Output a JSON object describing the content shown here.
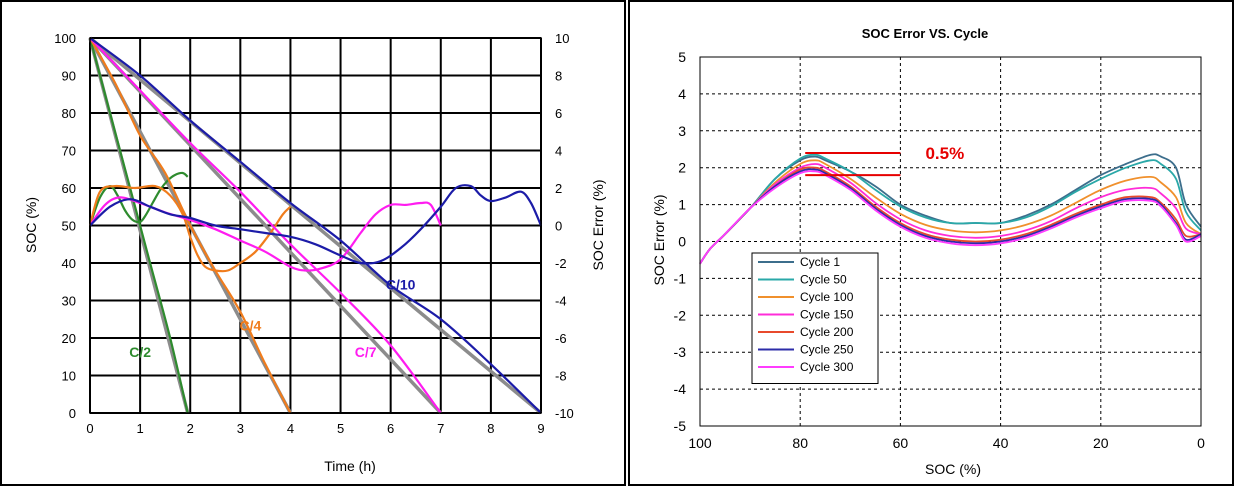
{
  "chart_data": [
    {
      "type": "line",
      "title": "",
      "xlabel": "Time (h)",
      "ylabel": "SOC (%)",
      "y2label": "SOC Error (%)",
      "xlim": [
        0,
        9
      ],
      "ylim": [
        0,
        100
      ],
      "y2lim": [
        -10,
        10
      ],
      "x_ticks": [
        "0",
        "1",
        "2",
        "3",
        "4",
        "5",
        "6",
        "7",
        "8",
        "9"
      ],
      "y_ticks": [
        "0",
        "10",
        "20",
        "30",
        "40",
        "50",
        "60",
        "70",
        "80",
        "90",
        "100"
      ],
      "y2_ticks": [
        "-10",
        "-8",
        "-6",
        "-4",
        "-2",
        "0",
        "2",
        "4",
        "6",
        "8",
        "10"
      ],
      "grid": true,
      "legend": "none",
      "series": [
        {
          "name": "C/2",
          "color": "#2e8b2e",
          "axis": "y",
          "points": [
            [
              0,
              100
            ],
            [
              0.4,
              80
            ],
            [
              0.8,
              60
            ],
            [
              1.2,
              40
            ],
            [
              1.6,
              20
            ],
            [
              1.95,
              0
            ]
          ]
        },
        {
          "name": "",
          "color": "#2e8b2e",
          "axis": "y2",
          "points": [
            [
              0,
              0
            ],
            [
              0.2,
              1.5
            ],
            [
              0.4,
              2.1
            ],
            [
              0.55,
              1.6
            ],
            [
              0.7,
              0.8
            ],
            [
              0.85,
              0.3
            ],
            [
              1.0,
              0.2
            ],
            [
              1.1,
              0.5
            ],
            [
              1.25,
              1.2
            ],
            [
              1.4,
              1.9
            ],
            [
              1.55,
              2.4
            ],
            [
              1.7,
              2.7
            ],
            [
              1.85,
              2.8
            ],
            [
              1.95,
              2.6
            ]
          ]
        },
        {
          "name": "C/4",
          "color": "#f07c1c",
          "axis": "y",
          "points": [
            [
              0,
              100
            ],
            [
              0.5,
              88
            ],
            [
              1.0,
              74
            ],
            [
              1.5,
              64
            ],
            [
              2.0,
              50
            ],
            [
              2.5,
              38
            ],
            [
              3.0,
              27
            ],
            [
              3.5,
              13
            ],
            [
              4.0,
              0
            ]
          ]
        },
        {
          "name": "",
          "color": "#f07c1c",
          "axis": "y2",
          "points": [
            [
              0,
              0
            ],
            [
              0.2,
              1.8
            ],
            [
              0.5,
              2.1
            ],
            [
              0.9,
              2.0
            ],
            [
              1.3,
              2.1
            ],
            [
              1.6,
              1.6
            ],
            [
              1.85,
              0.6
            ],
            [
              2.0,
              -0.6
            ],
            [
              2.15,
              -1.6
            ],
            [
              2.3,
              -2.2
            ],
            [
              2.5,
              -2.4
            ],
            [
              2.75,
              -2.4
            ],
            [
              3.0,
              -2.0
            ],
            [
              3.3,
              -1.4
            ],
            [
              3.6,
              -0.4
            ],
            [
              3.85,
              0.6
            ],
            [
              4.0,
              1.0
            ]
          ]
        },
        {
          "name": "C/7",
          "color": "#ff1cf0",
          "axis": "y",
          "points": [
            [
              0,
              100
            ],
            [
              1,
              86
            ],
            [
              2,
              72
            ],
            [
              3,
              59
            ],
            [
              4,
              45
            ],
            [
              5,
              32
            ],
            [
              6,
              18
            ],
            [
              7,
              0
            ]
          ]
        },
        {
          "name": "",
          "color": "#ff1cf0",
          "axis": "y2",
          "points": [
            [
              0,
              0
            ],
            [
              0.3,
              1.1
            ],
            [
              0.6,
              1.5
            ],
            [
              1.0,
              1.2
            ],
            [
              1.5,
              0.7
            ],
            [
              2.0,
              0.3
            ],
            [
              2.5,
              -0.2
            ],
            [
              3.0,
              -0.8
            ],
            [
              3.5,
              -1.4
            ],
            [
              4.0,
              -2.2
            ],
            [
              4.3,
              -2.4
            ],
            [
              4.6,
              -2.3
            ],
            [
              5.0,
              -1.8
            ],
            [
              5.4,
              -0.4
            ],
            [
              5.7,
              0.6
            ],
            [
              6.0,
              1.1
            ],
            [
              6.3,
              1.1
            ],
            [
              6.6,
              1.2
            ],
            [
              6.8,
              1.1
            ],
            [
              7.0,
              0
            ]
          ]
        },
        {
          "name": "C/10",
          "color": "#1c1ca8",
          "axis": "y",
          "points": [
            [
              0,
              100
            ],
            [
              1,
              90
            ],
            [
              2,
              78
            ],
            [
              3,
              67
            ],
            [
              4,
              56
            ],
            [
              5,
              46
            ],
            [
              6,
              34
            ],
            [
              7,
              25
            ],
            [
              8,
              13
            ],
            [
              9,
              0
            ]
          ]
        },
        {
          "name": "",
          "color": "#1c1ca8",
          "axis": "y2",
          "points": [
            [
              0,
              0
            ],
            [
              0.4,
              1.0
            ],
            [
              0.8,
              1.4
            ],
            [
              1.2,
              1.0
            ],
            [
              1.6,
              0.6
            ],
            [
              2.0,
              0.4
            ],
            [
              2.5,
              0
            ],
            [
              3.0,
              -0.2
            ],
            [
              3.5,
              -0.4
            ],
            [
              4.0,
              -0.6
            ],
            [
              4.5,
              -1.0
            ],
            [
              5.0,
              -1.6
            ],
            [
              5.4,
              -2.0
            ],
            [
              5.8,
              -1.9
            ],
            [
              6.2,
              -1.2
            ],
            [
              6.6,
              -0.2
            ],
            [
              7.0,
              1.0
            ],
            [
              7.3,
              2.0
            ],
            [
              7.6,
              2.1
            ],
            [
              7.8,
              1.6
            ],
            [
              8.0,
              1.3
            ],
            [
              8.3,
              1.5
            ],
            [
              8.6,
              1.8
            ],
            [
              8.8,
              1.2
            ],
            [
              9.0,
              0
            ]
          ]
        },
        {
          "name": "",
          "color": "#8c8c8c",
          "axis": "y",
          "points": [
            [
              0,
              100
            ],
            [
              1.95,
              0
            ]
          ]
        },
        {
          "name": "",
          "color": "#8c8c8c",
          "axis": "y",
          "points": [
            [
              0,
              100
            ],
            [
              4,
              0
            ]
          ]
        },
        {
          "name": "",
          "color": "#8c8c8c",
          "axis": "y",
          "points": [
            [
              0,
              100
            ],
            [
              7,
              0
            ]
          ]
        },
        {
          "name": "",
          "color": "#8c8c8c",
          "axis": "y",
          "points": [
            [
              0,
              100
            ],
            [
              9,
              0
            ]
          ]
        }
      ],
      "annotations": [
        {
          "text": "C/2",
          "x": 1.0,
          "y": 15,
          "color": "#2e8b2e"
        },
        {
          "text": "C/4",
          "x": 3.2,
          "y": 22,
          "color": "#f07c1c"
        },
        {
          "text": "C/7",
          "x": 5.5,
          "y": 15,
          "color": "#ff1cf0"
        },
        {
          "text": "C/10",
          "x": 6.2,
          "y": 33,
          "color": "#1c1ca8"
        }
      ]
    },
    {
      "type": "line",
      "title": "SOC Error VS. Cycle",
      "xlabel": "SOC (%)",
      "ylabel": "SOC Error (%)",
      "xlim": [
        100,
        0
      ],
      "ylim": [
        -5,
        5
      ],
      "x_ticks": [
        "100",
        "80",
        "60",
        "40",
        "20",
        "0"
      ],
      "y_ticks": [
        "-5",
        "-4",
        "-3",
        "-2",
        "-1",
        "0",
        "1",
        "2",
        "3",
        "4",
        "5"
      ],
      "grid": true,
      "legend": "bottom-left",
      "x": [
        100,
        98,
        95,
        90,
        85,
        80,
        77,
        75,
        70,
        65,
        60,
        55,
        50,
        45,
        40,
        35,
        30,
        25,
        20,
        15,
        10,
        8,
        5,
        3,
        0
      ],
      "series": [
        {
          "name": "Cycle 1",
          "color": "#3c6e8c",
          "values": [
            -0.6,
            -0.2,
            0.2,
            0.9,
            1.7,
            2.2,
            2.3,
            2.2,
            1.9,
            1.5,
            1.0,
            0.7,
            0.5,
            0.5,
            0.5,
            0.7,
            1.0,
            1.4,
            1.8,
            2.1,
            2.35,
            2.3,
            2.0,
            1.0,
            0.4
          ]
        },
        {
          "name": "Cycle 50",
          "color": "#2aa8a8",
          "values": [
            -0.6,
            -0.2,
            0.2,
            0.9,
            1.7,
            2.25,
            2.35,
            2.25,
            1.9,
            1.4,
            0.95,
            0.65,
            0.5,
            0.5,
            0.5,
            0.65,
            0.95,
            1.35,
            1.7,
            2.0,
            2.2,
            2.1,
            1.7,
            0.8,
            0.3
          ]
        },
        {
          "name": "Cycle 100",
          "color": "#f0902c",
          "values": [
            -0.6,
            -0.2,
            0.2,
            0.9,
            1.6,
            2.1,
            2.2,
            2.1,
            1.7,
            1.2,
            0.75,
            0.45,
            0.3,
            0.25,
            0.3,
            0.45,
            0.7,
            1.05,
            1.4,
            1.65,
            1.75,
            1.6,
            1.2,
            0.5,
            0.2
          ]
        },
        {
          "name": "Cycle 150",
          "color": "#ff2cd8",
          "values": [
            -0.6,
            -0.2,
            0.2,
            0.9,
            1.55,
            2.0,
            2.1,
            2.0,
            1.6,
            1.05,
            0.6,
            0.3,
            0.15,
            0.1,
            0.15,
            0.3,
            0.55,
            0.9,
            1.2,
            1.4,
            1.45,
            1.3,
            0.9,
            0.35,
            0.2
          ]
        },
        {
          "name": "Cycle 200",
          "color": "#e84a2c",
          "values": [
            -0.6,
            -0.2,
            0.2,
            0.9,
            1.5,
            1.95,
            2.0,
            1.9,
            1.5,
            0.95,
            0.5,
            0.2,
            0.05,
            0.0,
            0.05,
            0.2,
            0.45,
            0.75,
            1.0,
            1.2,
            1.2,
            1.05,
            0.6,
            0.15,
            0.2
          ]
        },
        {
          "name": "Cycle 250",
          "color": "#2c2ca8",
          "values": [
            -0.6,
            -0.2,
            0.2,
            0.9,
            1.5,
            1.9,
            1.95,
            1.85,
            1.45,
            0.9,
            0.45,
            0.15,
            0.0,
            -0.05,
            0.0,
            0.15,
            0.4,
            0.7,
            0.95,
            1.15,
            1.15,
            1.0,
            0.5,
            0.05,
            0.2
          ]
        },
        {
          "name": "Cycle 300",
          "color": "#ff3cff",
          "values": [
            -0.6,
            -0.2,
            0.2,
            0.9,
            1.45,
            1.85,
            1.9,
            1.8,
            1.4,
            0.85,
            0.4,
            0.1,
            -0.05,
            -0.1,
            -0.05,
            0.1,
            0.35,
            0.65,
            0.9,
            1.1,
            1.1,
            0.95,
            0.45,
            0.0,
            0.15
          ]
        }
      ],
      "annotations": [
        {
          "text": "0.5%",
          "color": "#e60000",
          "lines": [
            [
              79,
              2.4
            ],
            [
              60,
              2.4
            ],
            [
              79,
              1.8
            ],
            [
              60,
              1.8
            ]
          ],
          "label_x": 55,
          "label_y": 2.4
        }
      ]
    }
  ]
}
